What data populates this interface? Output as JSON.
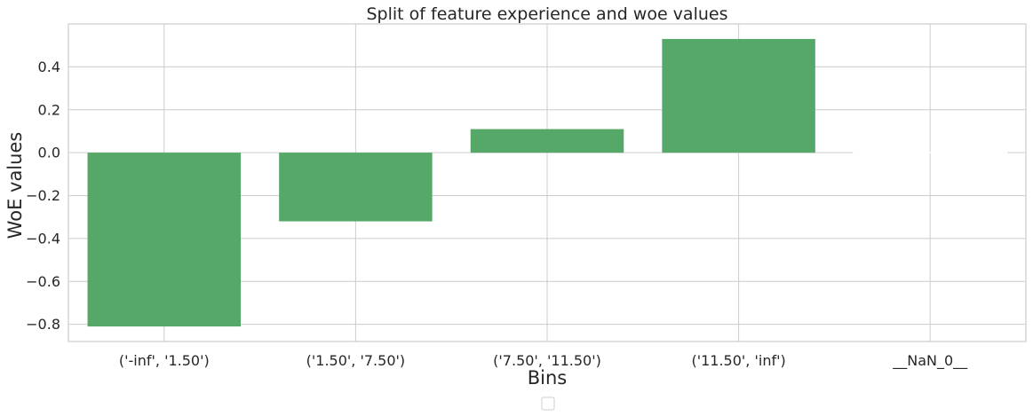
{
  "chart_data": {
    "type": "bar",
    "title": "Split of feature experience and woe values",
    "xlabel": "Bins",
    "ylabel": "WoE values",
    "categories": [
      "('-inf', '1.50')",
      "('1.50', '7.50')",
      "('7.50', '11.50')",
      "('11.50', 'inf')",
      "__NaN_0__"
    ],
    "values": [
      -0.81,
      -0.32,
      0.11,
      0.53,
      0.0
    ],
    "ylim": [
      -0.88,
      0.6
    ],
    "yticks": [
      -0.8,
      -0.6,
      -0.4,
      -0.2,
      0.0,
      0.2,
      0.4
    ],
    "ytick_labels": [
      "−0.8",
      "−0.6",
      "−0.4",
      "−0.2",
      "0.0",
      "0.2",
      "0.4"
    ],
    "grid": true,
    "legend": "empty, bottom-center",
    "colors": {
      "bar": "#55a868",
      "grid": "#cccccc",
      "axis_edge": "#cccccc",
      "text": "#262626"
    }
  }
}
